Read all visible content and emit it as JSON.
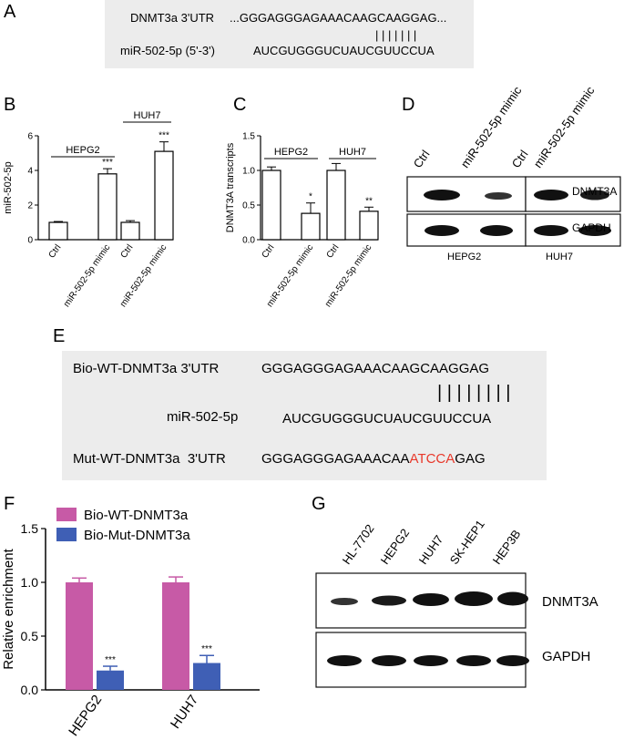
{
  "panels": {
    "A": {
      "letter": "A",
      "utr_label": "DNMT3a 3'UTR",
      "utr_seq": "...GGGAGGGAGAAACAAGCAAGGAG...",
      "bars": "| | | | | | |",
      "mir_label": "miR-502-5p (5'-3')",
      "mir_seq": "AUCGUGGGUCUAUCGUUCCUA"
    },
    "B": {
      "letter": "B"
    },
    "C": {
      "letter": "C"
    },
    "D": {
      "letter": "D",
      "lanes": [
        "Ctrl",
        "miR-502-5p mimic",
        "Ctrl",
        "miR-502-5p mimic"
      ],
      "proteins": [
        "DNMT3A",
        "GAPDH"
      ],
      "cells": [
        "HEPG2",
        "HUH7"
      ]
    },
    "E": {
      "letter": "E",
      "wt_label": "Bio-WT-DNMT3a 3'UTR",
      "wt_seq": "GGGAGGGAGAAACAAGCAAGGAG",
      "bars": "| | | | | | | |",
      "mir_label": "miR-502-5p",
      "mir_seq": "AUCGUGGGUCUAUCGUUCCUA",
      "mut_label": "Mut-WT-DNMT3a  3'UTR",
      "mut_seq_pre": "GGGAGGGAGAAACAA",
      "mut_seq_red": "ATCCA",
      "mut_seq_post": "GAG"
    },
    "F": {
      "letter": "F"
    },
    "G": {
      "letter": "G",
      "lanes": [
        "HL-7702",
        "HEPG2",
        "HUH7",
        "SK-HEP1",
        "HEP3B"
      ],
      "proteins": [
        "DNMT3A",
        "GAPDH"
      ]
    }
  },
  "chart_data": [
    {
      "id": "B",
      "type": "bar",
      "ylabel": "miR-502-5p",
      "ylim": [
        0,
        6
      ],
      "yticks": [
        0,
        2,
        4,
        6
      ],
      "categories": [
        "Ctrl",
        "miR-502-5p mimic",
        "Ctrl",
        "miR-502-5p mimic"
      ],
      "values": [
        1.0,
        3.8,
        1.0,
        5.1
      ],
      "errors": [
        0.05,
        0.3,
        0.1,
        0.55
      ],
      "significance": [
        "",
        "***",
        "",
        "***"
      ],
      "groups": [
        "HEPG2",
        "HUH7"
      ],
      "bar_color": "#ffffff"
    },
    {
      "id": "C",
      "type": "bar",
      "ylabel": "DNMT3A transcripts",
      "ylim": [
        0,
        1.5
      ],
      "yticks": [
        0.0,
        0.5,
        1.0,
        1.5
      ],
      "ytick_labels": [
        "0.0",
        "0.5",
        "1.0",
        "1.5"
      ],
      "categories": [
        "Ctrl",
        "miR-502-5p mimic",
        "Ctrl",
        "miR-502-5p mimic"
      ],
      "values": [
        1.0,
        0.38,
        1.0,
        0.41
      ],
      "errors": [
        0.05,
        0.15,
        0.1,
        0.06
      ],
      "significance": [
        "",
        "*",
        "",
        "**"
      ],
      "groups": [
        "HEPG2",
        "HUH7"
      ],
      "bar_color": "#ffffff"
    },
    {
      "id": "F",
      "type": "bar",
      "ylabel": "Relative enrichment",
      "ylim": [
        0,
        1.5
      ],
      "yticks": [
        0.0,
        0.5,
        1.0,
        1.5
      ],
      "ytick_labels": [
        "0.0",
        "0.5",
        "1.0",
        "1.5"
      ],
      "categories": [
        "HEPG2",
        "HUH7"
      ],
      "series": [
        {
          "name": "Bio-WT-DNMT3a",
          "color": "#c75aa6",
          "values": [
            1.0,
            1.0
          ],
          "errors": [
            0.04,
            0.05
          ],
          "significance": [
            "",
            ""
          ]
        },
        {
          "name": "Bio-Mut-DNMT3a",
          "color": "#3f5fb5",
          "values": [
            0.18,
            0.25
          ],
          "errors": [
            0.04,
            0.07
          ],
          "significance": [
            "***",
            "***"
          ]
        }
      ],
      "legend": "top-left"
    }
  ]
}
